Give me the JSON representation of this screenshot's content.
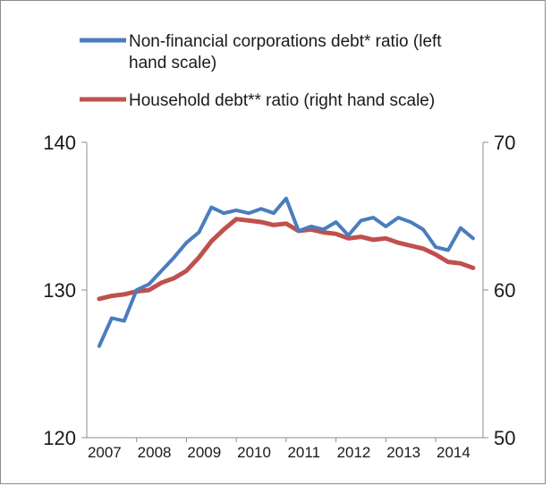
{
  "chart_data": {
    "type": "line",
    "title": "",
    "xlabel": "",
    "ylabel": "",
    "y_left_lim": [
      120,
      140
    ],
    "y_right_lim": [
      50,
      70
    ],
    "y_left_ticks": [
      "120",
      "130",
      "140"
    ],
    "y_right_ticks": [
      "50",
      "60",
      "70"
    ],
    "x_tick_labels": [
      "2007",
      "2008",
      "2009",
      "2010",
      "2011",
      "2012",
      "2013",
      "2014"
    ],
    "x_lim": [
      2007.0,
      2014.95
    ],
    "grid": false,
    "legend_position": "top",
    "legend": [
      {
        "text": "Non-financial corporations debt* ratio (left hand scale)",
        "lines": [
          "Non-financial corporations debt* ratio (left",
          "hand scale)"
        ],
        "color": "#4a7dbe"
      },
      {
        "text": "Household debt** ratio (right hand scale)",
        "lines": [
          "Household debt** ratio (right hand scale)"
        ],
        "color": "#c0504d"
      }
    ],
    "x": [
      2007.25,
      2007.5,
      2007.75,
      2008.0,
      2008.25,
      2008.5,
      2008.75,
      2009.0,
      2009.25,
      2009.5,
      2009.75,
      2010.0,
      2010.25,
      2010.5,
      2010.75,
      2011.0,
      2011.25,
      2011.5,
      2011.75,
      2012.0,
      2012.25,
      2012.5,
      2012.75,
      2013.0,
      2013.25,
      2013.5,
      2013.75,
      2014.0,
      2014.25,
      2014.5,
      2014.75
    ],
    "series": [
      {
        "name": "Non-financial corporations debt* ratio (left hand scale)",
        "axis": "left",
        "color": "#4a7dbe",
        "values": [
          126.2,
          128.1,
          127.9,
          130.0,
          130.4,
          131.3,
          132.2,
          133.2,
          133.9,
          135.6,
          135.2,
          135.4,
          135.2,
          135.5,
          135.2,
          136.2,
          134.0,
          134.3,
          134.1,
          134.6,
          133.7,
          134.7,
          134.9,
          134.3,
          134.9,
          134.6,
          134.1,
          132.9,
          132.7,
          134.2,
          133.5
        ]
      },
      {
        "name": "Household debt** ratio (right hand scale)",
        "axis": "right",
        "color": "#c0504d",
        "values": [
          59.4,
          59.6,
          59.7,
          59.9,
          60.0,
          60.5,
          60.8,
          61.3,
          62.2,
          63.3,
          64.1,
          64.8,
          64.7,
          64.6,
          64.4,
          64.5,
          64.0,
          64.1,
          63.9,
          63.8,
          63.5,
          63.6,
          63.4,
          63.5,
          63.2,
          63.0,
          62.8,
          62.4,
          61.9,
          61.8,
          61.5
        ]
      }
    ]
  }
}
